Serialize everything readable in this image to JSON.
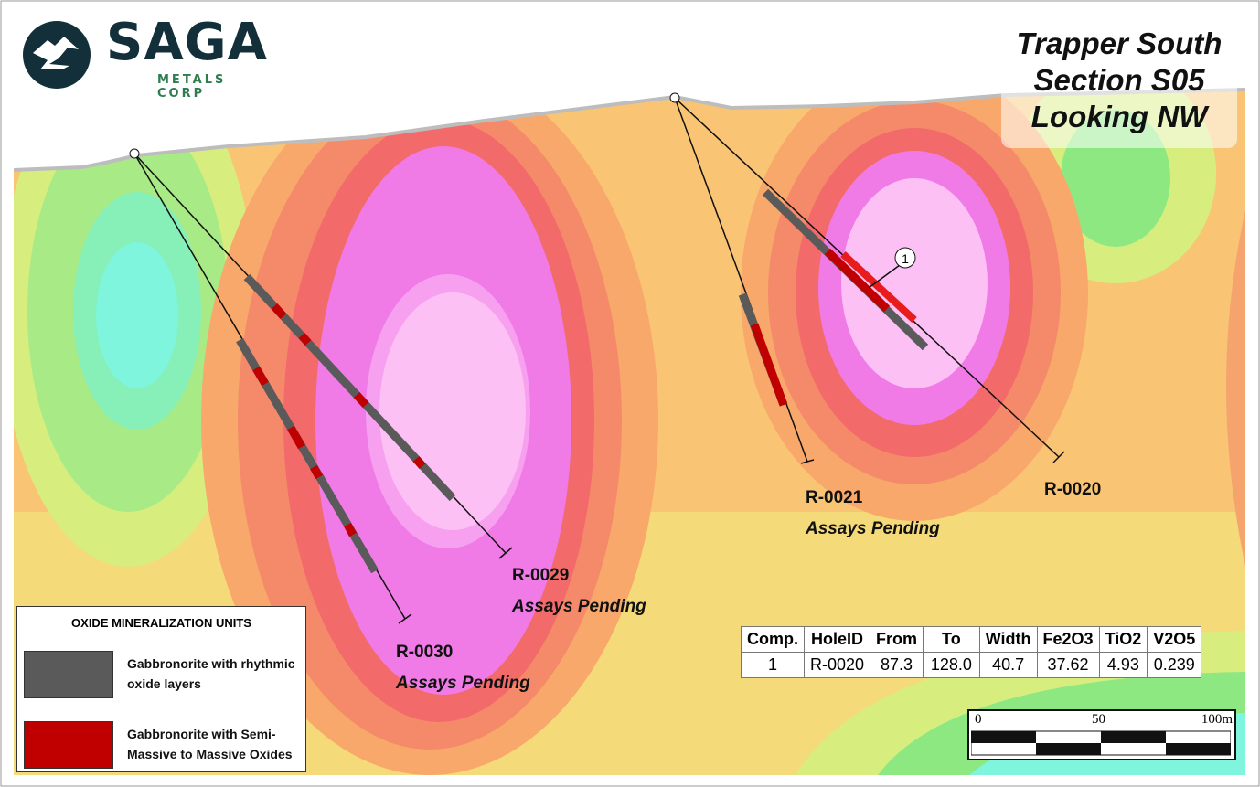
{
  "logo": {
    "name": "SAGA",
    "subtitle": "METALS CORP"
  },
  "title": {
    "lines": [
      "Trapper South",
      "Section S05",
      "Looking NW"
    ]
  },
  "holes": [
    {
      "id": "R-0029",
      "status": "Assays Pending"
    },
    {
      "id": "R-0030",
      "status": "Assays Pending"
    },
    {
      "id": "R-0021",
      "status": "Assays Pending"
    },
    {
      "id": "R-0020",
      "status": ""
    }
  ],
  "composite_marker": "1",
  "legend": {
    "title": "OXIDE MINERALIZATION UNITS",
    "items": [
      {
        "label_1": "Gabbronorite with rhythmic",
        "label_2": "oxide layers",
        "color": "#5a5a5a"
      },
      {
        "label_1": "Gabbronorite with Semi-",
        "label_2": "Massive to Massive Oxides",
        "color": "#c00000"
      }
    ]
  },
  "table": {
    "headers": [
      "Comp.",
      "HoleID",
      "From",
      "To",
      "Width",
      "Fe2O3",
      "TiO2",
      "V2O5"
    ],
    "rows": [
      [
        "1",
        "R-0020",
        "87.3",
        "128.0",
        "40.7",
        "37.62",
        "4.93",
        "0.239"
      ]
    ]
  },
  "scale_bar": {
    "ticks": [
      "0",
      "50",
      "100m"
    ]
  },
  "colors": {
    "high": "#fcc0f5",
    "magenta": "#f07be6",
    "red": "#f26a6a",
    "orange": "#f8a86a",
    "yellow": "#f7e27a",
    "green": "#8de882",
    "cyan": "#7ef5dc"
  }
}
